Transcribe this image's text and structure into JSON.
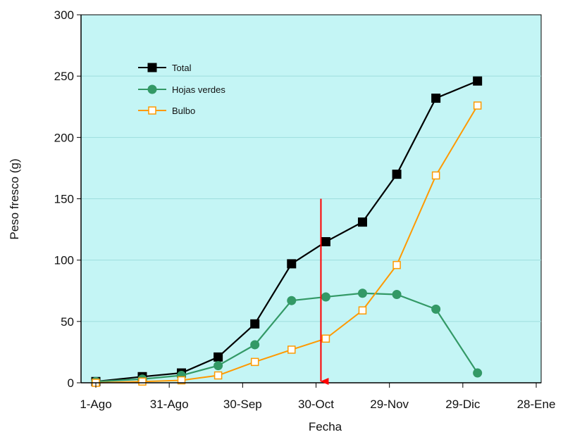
{
  "chart_data": {
    "type": "line",
    "xlabel": "Fecha",
    "ylabel": "Peso fresco (g)",
    "x_ticks": [
      {
        "day": 0,
        "label": "1-Ago"
      },
      {
        "day": 30,
        "label": "31-Ago"
      },
      {
        "day": 60,
        "label": "30-Sep"
      },
      {
        "day": 90,
        "label": "30-Oct"
      },
      {
        "day": 120,
        "label": "29-Nov"
      },
      {
        "day": 150,
        "label": "29-Dic"
      },
      {
        "day": 180,
        "label": "28-Ene"
      }
    ],
    "xlim": [
      0,
      180
    ],
    "ylim": [
      0,
      300
    ],
    "y_ticks": [
      0,
      50,
      100,
      150,
      200,
      250,
      300
    ],
    "grid": "horizontal",
    "legend_position": "top-left",
    "background_color": "#c4f5f5",
    "series": [
      {
        "name": "Total",
        "color": "#000000",
        "marker": "square-filled",
        "points": [
          {
            "x": 0,
            "y": 1
          },
          {
            "x": 19,
            "y": 5
          },
          {
            "x": 35,
            "y": 8
          },
          {
            "x": 50,
            "y": 21
          },
          {
            "x": 65,
            "y": 48
          },
          {
            "x": 80,
            "y": 97
          },
          {
            "x": 94,
            "y": 115
          },
          {
            "x": 109,
            "y": 131
          },
          {
            "x": 123,
            "y": 170
          },
          {
            "x": 139,
            "y": 232
          },
          {
            "x": 156,
            "y": 246
          }
        ]
      },
      {
        "name": "Hojas verdes",
        "color": "#339966",
        "marker": "circle-filled",
        "points": [
          {
            "x": 0,
            "y": 1
          },
          {
            "x": 19,
            "y": 3
          },
          {
            "x": 35,
            "y": 6
          },
          {
            "x": 50,
            "y": 14
          },
          {
            "x": 65,
            "y": 31
          },
          {
            "x": 80,
            "y": 67
          },
          {
            "x": 94,
            "y": 70
          },
          {
            "x": 109,
            "y": 73
          },
          {
            "x": 123,
            "y": 72
          },
          {
            "x": 139,
            "y": 60
          },
          {
            "x": 156,
            "y": 8
          }
        ]
      },
      {
        "name": "Bulbo",
        "color": "#ff9900",
        "marker": "square-open",
        "points": [
          {
            "x": 0,
            "y": 0
          },
          {
            "x": 19,
            "y": 1
          },
          {
            "x": 35,
            "y": 2
          },
          {
            "x": 50,
            "y": 6
          },
          {
            "x": 65,
            "y": 17
          },
          {
            "x": 80,
            "y": 27
          },
          {
            "x": 94,
            "y": 36
          },
          {
            "x": 109,
            "y": 59
          },
          {
            "x": 123,
            "y": 96
          },
          {
            "x": 139,
            "y": 169
          },
          {
            "x": 156,
            "y": 226
          }
        ]
      }
    ],
    "annotations": [
      {
        "type": "arrow",
        "color": "#ff0000",
        "x": 92,
        "y_start": 150,
        "y_end": 0
      }
    ]
  }
}
